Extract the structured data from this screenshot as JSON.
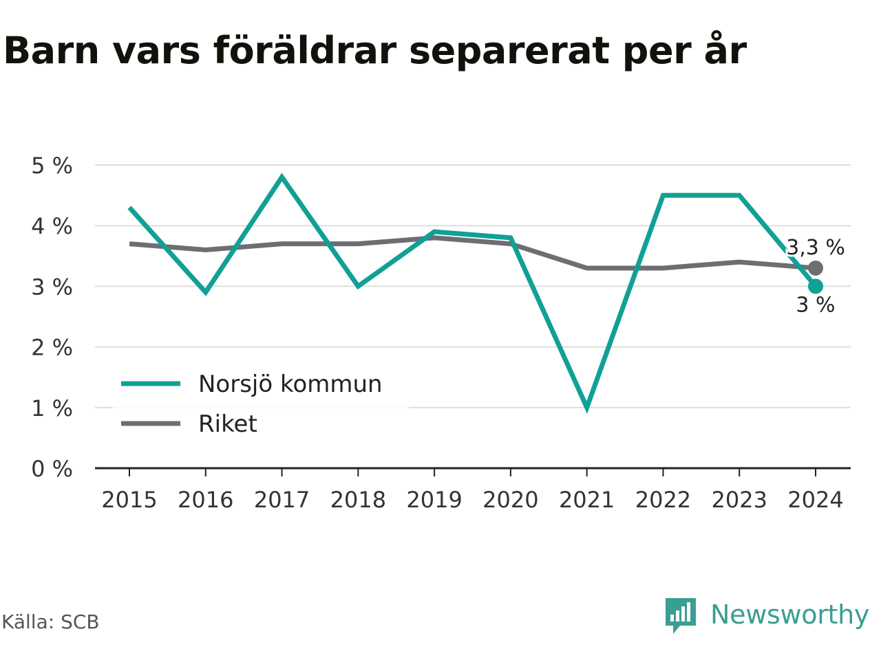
{
  "title": "Barn vars föräldrar separerat per år",
  "source": "Källa: SCB",
  "brand": "Newsworthy",
  "colors": {
    "norsjo": "#11a096",
    "riket": "#6e6d73",
    "grid": "#dddddd",
    "axis": "#222222",
    "text": "#333333",
    "brand": "#3a9e94"
  },
  "chart_data": {
    "type": "line",
    "x": [
      "2015",
      "2016",
      "2017",
      "2018",
      "2019",
      "2020",
      "2021",
      "2022",
      "2023",
      "2024"
    ],
    "ylim": [
      0,
      5
    ],
    "yticks": [
      0,
      1,
      2,
      3,
      4,
      5
    ],
    "ytick_labels": [
      "0 %",
      "1 %",
      "2 %",
      "3 %",
      "4 %",
      "5 %"
    ],
    "grid": true,
    "legend": "bottom-left",
    "series": [
      {
        "name": "Norsjö kommun",
        "color": "#11a096",
        "values": [
          4.3,
          2.9,
          4.8,
          3.0,
          3.9,
          3.8,
          1.0,
          4.5,
          4.5,
          3.0
        ],
        "end_label": "3 %"
      },
      {
        "name": "Riket",
        "color": "#6e6d73",
        "values": [
          3.7,
          3.6,
          3.7,
          3.7,
          3.8,
          3.7,
          3.3,
          3.3,
          3.4,
          3.3
        ],
        "end_label": "3,3 %"
      }
    ]
  }
}
